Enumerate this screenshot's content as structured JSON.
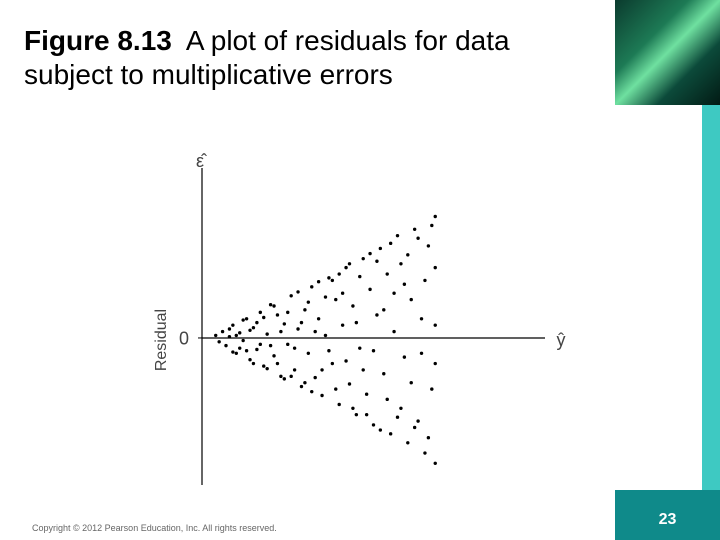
{
  "slide": {
    "figure_label": "Figure 8.13",
    "title": "A plot of residuals for data subject to multiplicative errors",
    "copyright": "Copyright © 2012 Pearson Education, Inc. All rights reserved.",
    "page_number": "23"
  },
  "chart_data": {
    "type": "scatter",
    "y_label": "Residual",
    "y_symbol": "ε̂",
    "x_symbol": "ŷ",
    "color": "#000000",
    "xlim": [
      0,
      1
    ],
    "ylim": [
      -1.15,
      1.47
    ],
    "yticks": [
      0
    ],
    "x": [
      0.04,
      0.05,
      0.06,
      0.07,
      0.08,
      0.09,
      0.1,
      0.11,
      0.12,
      0.13,
      0.14,
      0.15,
      0.16,
      0.17,
      0.18,
      0.19,
      0.2,
      0.21,
      0.22,
      0.23,
      0.24,
      0.25,
      0.26,
      0.27,
      0.28,
      0.29,
      0.3,
      0.31,
      0.32,
      0.33,
      0.34,
      0.35,
      0.36,
      0.37,
      0.38,
      0.39,
      0.4,
      0.41,
      0.42,
      0.43,
      0.44,
      0.45,
      0.46,
      0.47,
      0.48,
      0.49,
      0.5,
      0.51,
      0.52,
      0.53,
      0.54,
      0.55,
      0.56,
      0.57,
      0.58,
      0.59,
      0.6,
      0.61,
      0.62,
      0.63,
      0.64,
      0.65,
      0.66,
      0.67,
      0.68,
      0.68,
      0.68,
      0.68,
      0.68,
      0.67,
      0.66,
      0.65,
      0.64,
      0.63,
      0.62,
      0.61,
      0.6,
      0.59,
      0.58,
      0.57,
      0.56,
      0.55,
      0.54,
      0.53,
      0.52,
      0.51,
      0.5,
      0.49,
      0.48,
      0.47,
      0.46,
      0.45,
      0.44,
      0.43,
      0.42,
      0.41,
      0.4,
      0.39,
      0.38,
      0.37,
      0.36,
      0.35,
      0.34,
      0.33,
      0.32,
      0.31,
      0.3,
      0.29,
      0.28,
      0.27,
      0.26,
      0.25,
      0.24,
      0.23,
      0.22,
      0.21,
      0.2,
      0.19,
      0.18,
      0.17,
      0.16,
      0.15,
      0.14,
      0.13,
      0.12,
      0.11,
      0.1,
      0.09,
      0.08
    ],
    "values": [
      0.02,
      -0.03,
      0.05,
      -0.06,
      0.01,
      0.1,
      -0.12,
      0.04,
      -0.02,
      0.15,
      -0.17,
      0.08,
      -0.09,
      0.2,
      -0.22,
      0.03,
      0.26,
      -0.14,
      0.18,
      -0.3,
      0.11,
      -0.05,
      0.33,
      -0.25,
      0.07,
      -0.38,
      0.22,
      -0.12,
      0.4,
      -0.31,
      0.15,
      -0.45,
      0.02,
      0.47,
      -0.2,
      0.3,
      -0.52,
      0.1,
      0.55,
      -0.36,
      0.25,
      -0.6,
      -0.08,
      0.62,
      -0.44,
      0.38,
      -0.68,
      0.18,
      0.7,
      -0.28,
      0.5,
      -0.75,
      0.05,
      0.8,
      -0.55,
      0.42,
      -0.82,
      0.3,
      0.85,
      -0.65,
      0.15,
      -0.9,
      0.72,
      -0.4,
      0.95,
      -0.98,
      0.55,
      -0.2,
      0.1,
      0.88,
      -0.78,
      0.45,
      -0.12,
      0.78,
      -0.7,
      -0.35,
      0.65,
      -0.15,
      0.58,
      -0.62,
      0.35,
      0.74,
      -0.48,
      0.22,
      -0.72,
      0.6,
      -0.1,
      0.66,
      -0.6,
      -0.25,
      0.48,
      0.12,
      -0.55,
      0.58,
      -0.18,
      0.35,
      0.5,
      -0.4,
      0.45,
      -0.1,
      0.32,
      -0.25,
      0.44,
      0.05,
      -0.42,
      0.28,
      -0.35,
      0.12,
      0.36,
      -0.08,
      -0.3,
      0.2,
      -0.32,
      0.05,
      -0.2,
      0.25,
      -0.06,
      -0.24,
      0.16,
      -0.05,
      0.12,
      -0.2,
      0.06,
      -0.1,
      0.14,
      -0.08,
      0.02,
      -0.11,
      0.07
    ]
  }
}
